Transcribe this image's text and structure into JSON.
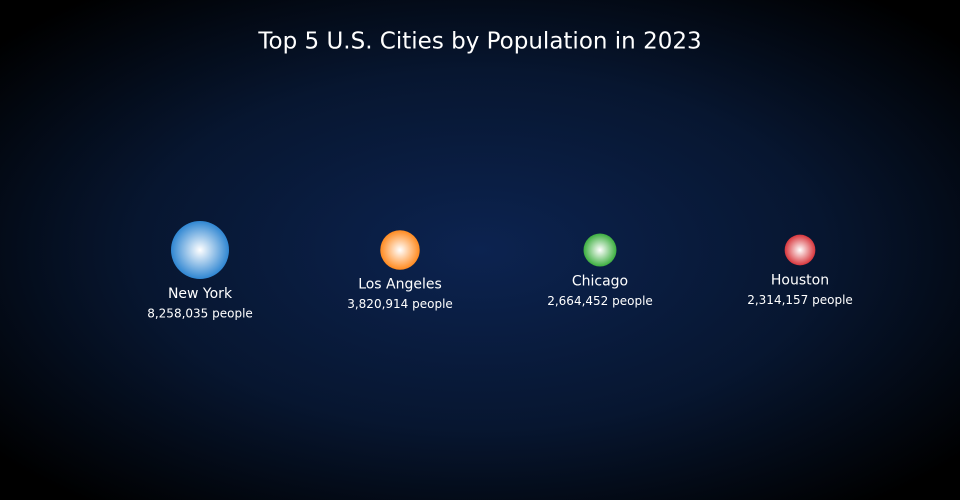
{
  "chart_data": {
    "type": "bubble",
    "title": "Top 5 U.S. Cities by Population in 2023",
    "categories": [
      "New York",
      "Los Angeles",
      "Chicago",
      "Houston"
    ],
    "values": [
      8258035,
      3820914,
      2664452,
      2314157
    ],
    "value_labels": [
      "8,258,035 people",
      "3,820,914 people",
      "2,664,452 people",
      "2,314,157 people"
    ],
    "colors": [
      "#2f86d2",
      "#ff8a1f",
      "#3cae3f",
      "#d8363c"
    ]
  }
}
